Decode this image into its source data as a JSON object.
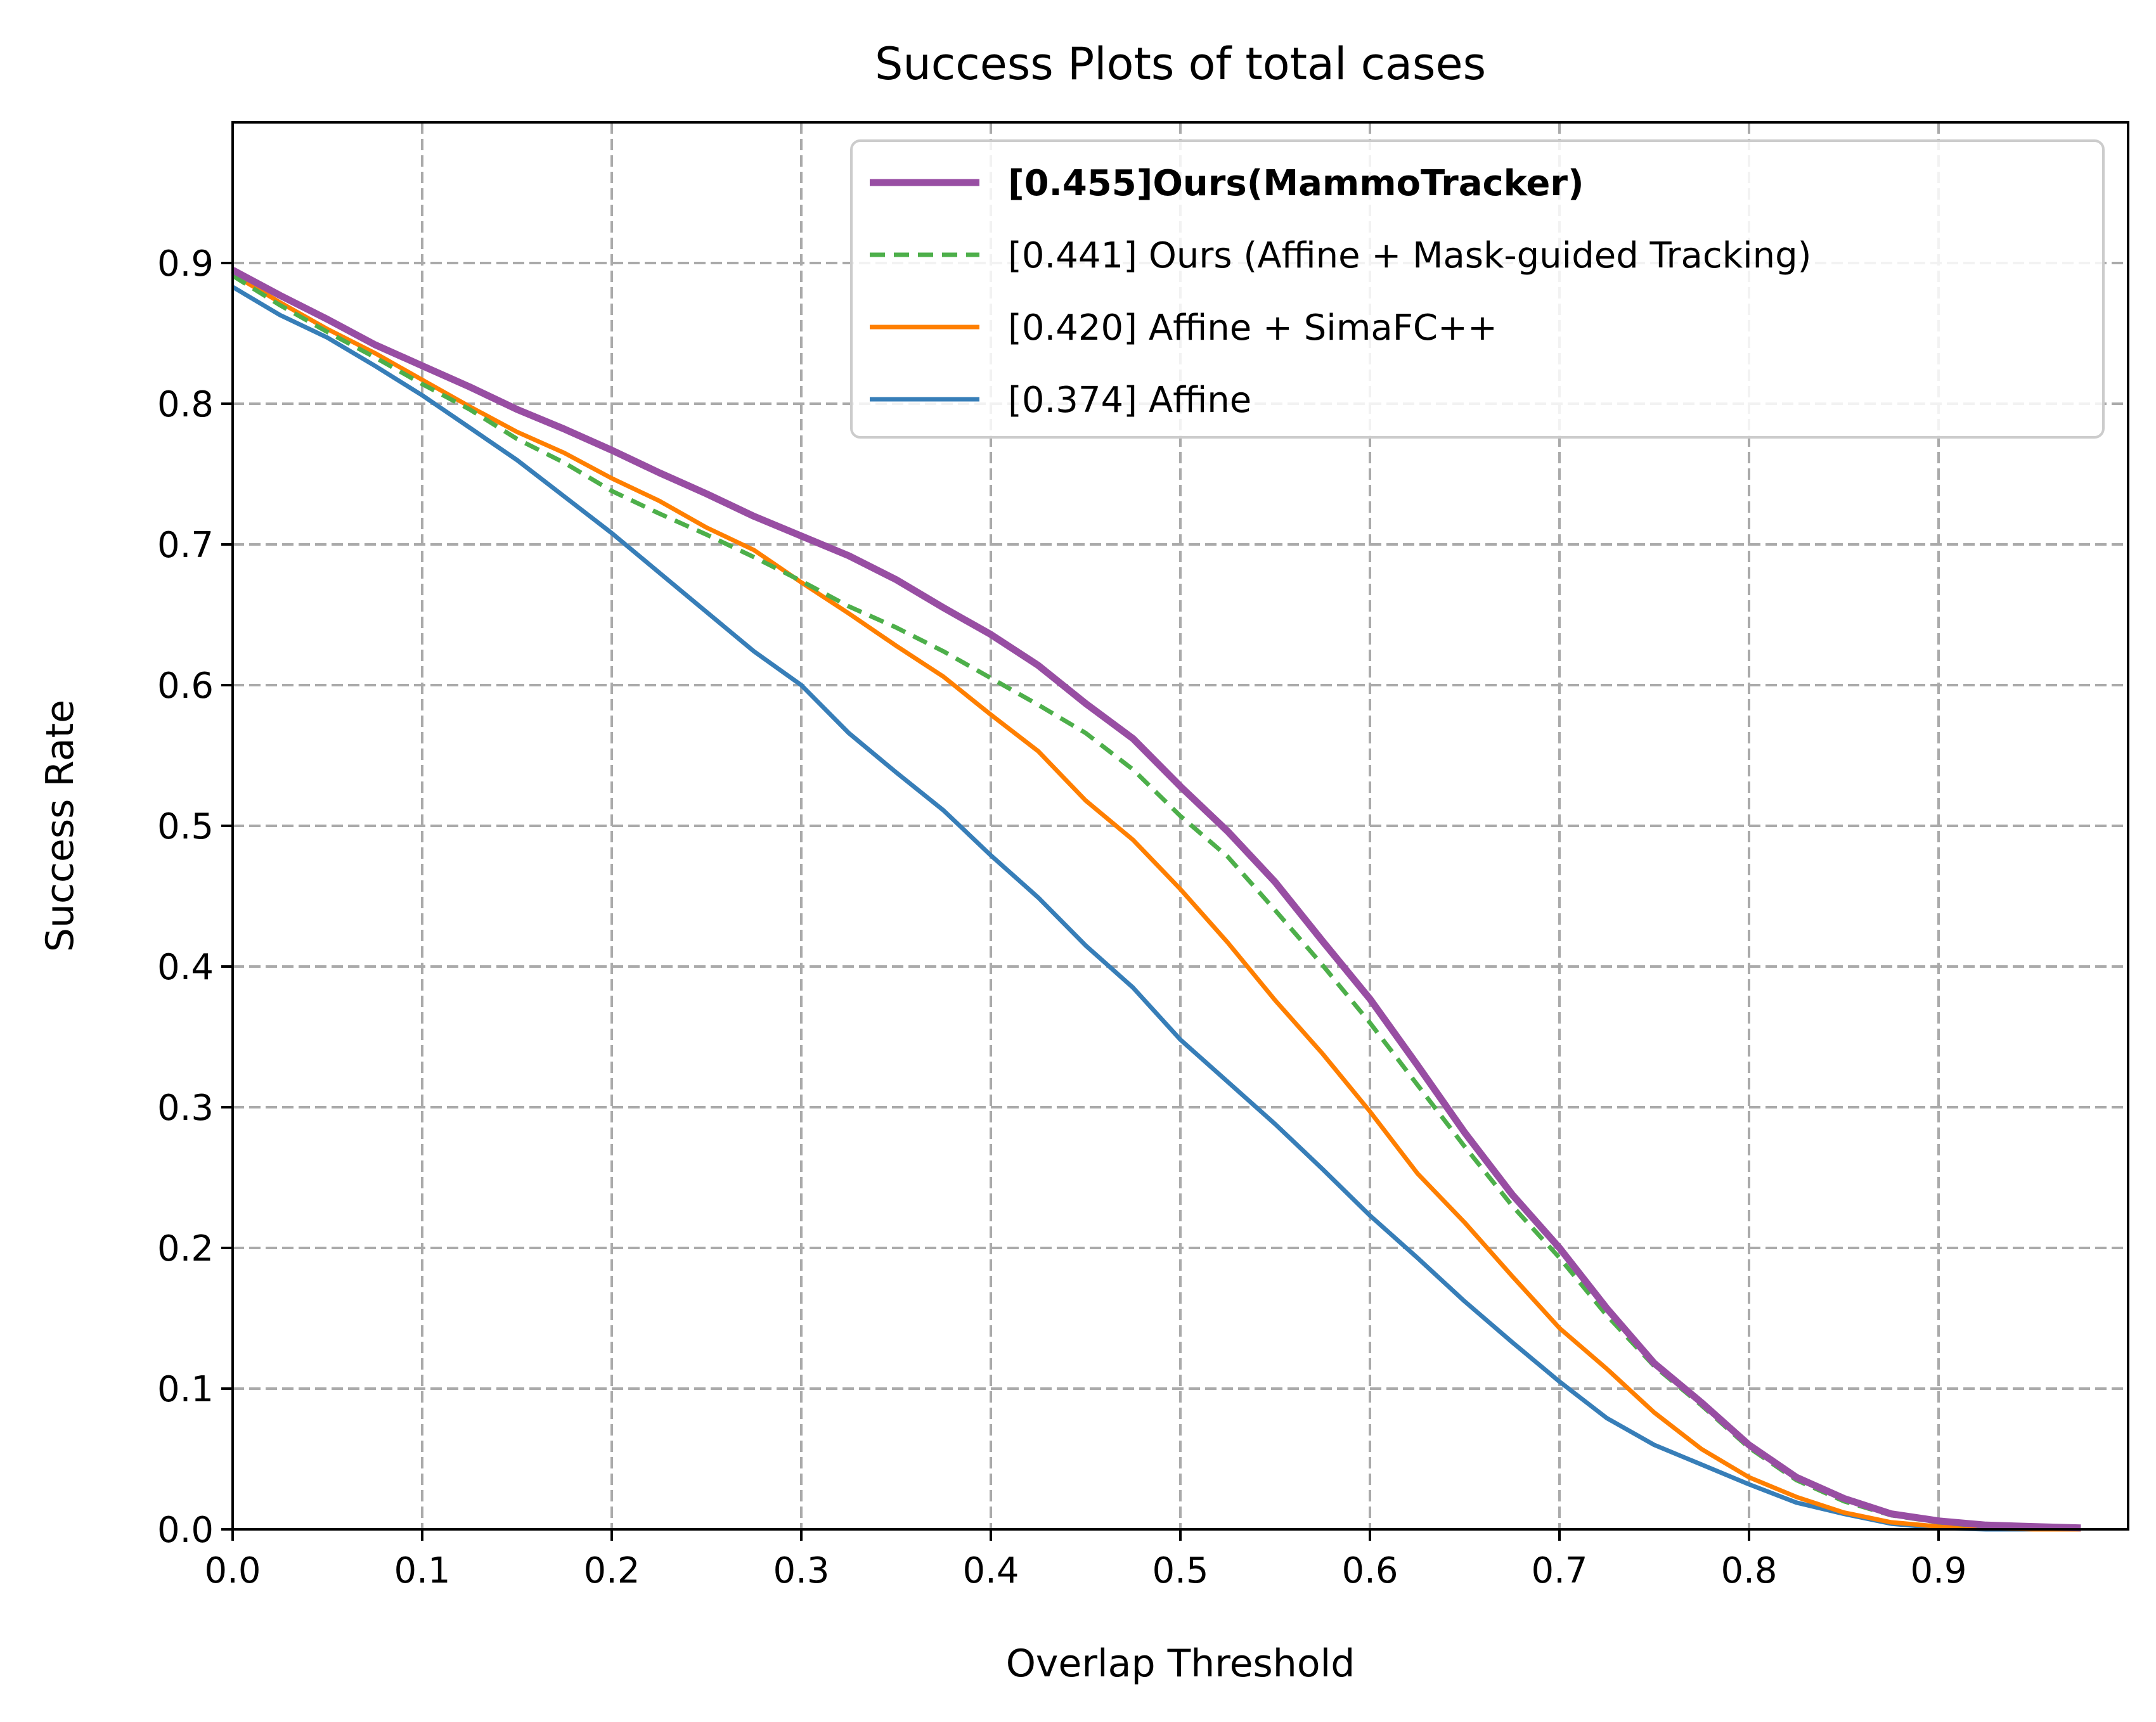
{
  "chart_data": {
    "type": "line",
    "title": "Success Plots of total cases",
    "xlabel": "Overlap Threshold",
    "ylabel": "Success Rate",
    "xlim": [
      0,
      1
    ],
    "ylim": [
      0,
      1
    ],
    "xticks": [
      "0.0",
      "0.1",
      "0.2",
      "0.3",
      "0.4",
      "0.5",
      "0.6",
      "0.7",
      "0.8",
      "0.9"
    ],
    "yticks": [
      "0.0",
      "0.1",
      "0.2",
      "0.3",
      "0.4",
      "0.5",
      "0.6",
      "0.7",
      "0.8",
      "0.9"
    ],
    "grid": true,
    "legend_position": "top-right",
    "x": [
      0.0,
      0.025,
      0.05,
      0.075,
      0.1,
      0.125,
      0.15,
      0.175,
      0.2,
      0.225,
      0.25,
      0.275,
      0.3,
      0.325,
      0.35,
      0.375,
      0.4,
      0.425,
      0.45,
      0.475,
      0.5,
      0.525,
      0.55,
      0.575,
      0.6,
      0.625,
      0.65,
      0.675,
      0.7,
      0.725,
      0.75,
      0.775,
      0.8,
      0.825,
      0.85,
      0.875,
      0.9,
      0.925,
      0.95,
      0.975
    ],
    "series": [
      {
        "name": "[0.455]Ours(MammoTracker)",
        "color": "#984ea3",
        "style": "solid",
        "bold": true,
        "values": [
          0.895,
          0.877,
          0.86,
          0.842,
          0.827,
          0.812,
          0.796,
          0.782,
          0.767,
          0.751,
          0.736,
          0.72,
          0.706,
          0.692,
          0.675,
          0.655,
          0.636,
          0.614,
          0.587,
          0.562,
          0.528,
          0.496,
          0.46,
          0.418,
          0.377,
          0.33,
          0.282,
          0.238,
          0.2,
          0.157,
          0.118,
          0.09,
          0.06,
          0.037,
          0.022,
          0.011,
          0.006,
          0.003,
          0.002,
          0.001
        ]
      },
      {
        "name": "[0.441] Ours (Affine + Mask-guided Tracking)",
        "color": "#4daf4a",
        "style": "dashed",
        "bold": false,
        "values": [
          0.891,
          0.87,
          0.851,
          0.833,
          0.814,
          0.796,
          0.775,
          0.758,
          0.738,
          0.722,
          0.707,
          0.691,
          0.674,
          0.656,
          0.641,
          0.624,
          0.605,
          0.586,
          0.566,
          0.54,
          0.507,
          0.478,
          0.44,
          0.401,
          0.36,
          0.316,
          0.272,
          0.23,
          0.193,
          0.152,
          0.116,
          0.088,
          0.058,
          0.035,
          0.02,
          0.01,
          0.005,
          0.002,
          0.001,
          0.001
        ]
      },
      {
        "name": "[0.420] Affine + SimaFC++",
        "color": "#ff7f00",
        "style": "solid",
        "bold": false,
        "values": [
          0.892,
          0.872,
          0.853,
          0.836,
          0.817,
          0.798,
          0.78,
          0.765,
          0.747,
          0.731,
          0.712,
          0.696,
          0.673,
          0.651,
          0.628,
          0.606,
          0.579,
          0.553,
          0.518,
          0.49,
          0.455,
          0.417,
          0.376,
          0.338,
          0.297,
          0.253,
          0.218,
          0.18,
          0.143,
          0.114,
          0.083,
          0.057,
          0.037,
          0.023,
          0.012,
          0.005,
          0.002,
          0.001,
          0.0,
          0.0
        ]
      },
      {
        "name": "[0.374] Affine",
        "color": "#377eb8",
        "style": "solid",
        "bold": false,
        "values": [
          0.883,
          0.863,
          0.847,
          0.827,
          0.806,
          0.783,
          0.76,
          0.734,
          0.708,
          0.68,
          0.652,
          0.624,
          0.6,
          0.566,
          0.538,
          0.511,
          0.479,
          0.449,
          0.415,
          0.385,
          0.348,
          0.318,
          0.288,
          0.256,
          0.223,
          0.193,
          0.162,
          0.133,
          0.105,
          0.079,
          0.06,
          0.046,
          0.032,
          0.019,
          0.011,
          0.004,
          0.001,
          0.0,
          0.0,
          0.0
        ]
      }
    ]
  }
}
